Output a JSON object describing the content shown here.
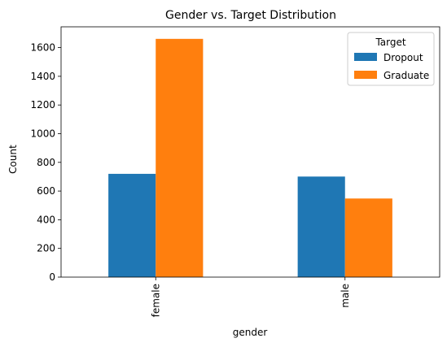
{
  "chart_data": {
    "type": "bar",
    "title": "Gender vs. Target Distribution",
    "xlabel": "gender",
    "ylabel": "Count",
    "categories": [
      "female",
      "male"
    ],
    "series": [
      {
        "name": "Dropout",
        "color": "#1f77b4",
        "values": [
          720,
          701
        ]
      },
      {
        "name": "Graduate",
        "color": "#ff7f0e",
        "values": [
          1661,
          548
        ]
      }
    ],
    "ylim": [
      0,
      1745
    ],
    "yticks": [
      0,
      200,
      400,
      600,
      800,
      1000,
      1200,
      1400,
      1600
    ],
    "legend": {
      "title": "Target",
      "placement": "top-right"
    },
    "grid": false
  }
}
